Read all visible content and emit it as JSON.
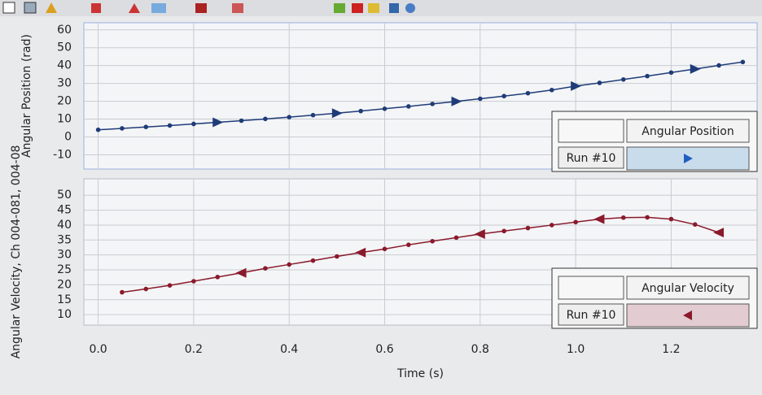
{
  "chart_data": [
    {
      "type": "line",
      "ylabel": "Angular Position (rad)",
      "legend_title": "Angular Position",
      "x": [
        0,
        0.05,
        0.1,
        0.15,
        0.2,
        0.25,
        0.3,
        0.35,
        0.4,
        0.45,
        0.5,
        0.55,
        0.6,
        0.65,
        0.7,
        0.75,
        0.8,
        0.85,
        0.9,
        0.95,
        1.0,
        1.05,
        1.1,
        1.15,
        1.2,
        1.25,
        1.3,
        1.35
      ],
      "series": [
        {
          "name": "Run #10",
          "color": "#1f3c78",
          "values": [
            4.0,
            4.8,
            5.6,
            6.4,
            7.3,
            8.2,
            9.1,
            10.1,
            11.1,
            12.2,
            13.3,
            14.5,
            15.8,
            17.1,
            18.5,
            19.9,
            21.4,
            22.9,
            24.5,
            26.3,
            28.5,
            30.3,
            32.2,
            34.1,
            36.1,
            38.1,
            40.1,
            42.0
          ]
        }
      ],
      "xlim": [
        -0.03,
        1.38
      ],
      "ylim": [
        -18,
        64
      ],
      "yticks": [
        -10,
        0,
        10,
        20,
        30,
        40,
        50,
        60
      ],
      "grid": true
    },
    {
      "type": "line",
      "ylabel": "Angular Velocity, Ch 004-081, 004-08",
      "xlabel": "Time (s)",
      "legend_title": "Angular Velocity",
      "x": [
        0.05,
        0.1,
        0.15,
        0.2,
        0.25,
        0.3,
        0.35,
        0.4,
        0.45,
        0.5,
        0.55,
        0.6,
        0.65,
        0.7,
        0.75,
        0.8,
        0.85,
        0.9,
        0.95,
        1.0,
        1.05,
        1.1,
        1.15,
        1.2,
        1.25,
        1.3
      ],
      "series": [
        {
          "name": "Run #10",
          "color": "#8a1a2c",
          "values": [
            17.5,
            18.6,
            19.8,
            21.2,
            22.6,
            24.0,
            25.5,
            26.8,
            28.1,
            29.5,
            30.8,
            32.0,
            33.4,
            34.6,
            35.8,
            37.0,
            38.0,
            39.0,
            40.0,
            41.0,
            42.0,
            42.5,
            42.6,
            42.0,
            40.2,
            37.5
          ]
        }
      ],
      "xlim": [
        -0.03,
        1.38
      ],
      "ylim": [
        6.5,
        55.5
      ],
      "yticks": [
        10,
        15,
        20,
        25,
        30,
        35,
        40,
        45,
        50
      ],
      "xticks": [
        {
          "value": 0,
          "label": "0.0"
        },
        0.2,
        0.4,
        0.6,
        0.8,
        {
          "value": 1,
          "label": "1.0"
        },
        1.2
      ],
      "grid": true
    }
  ]
}
